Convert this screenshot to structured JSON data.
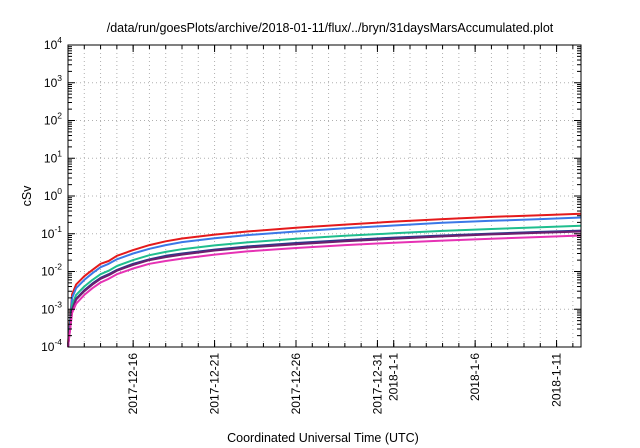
{
  "chart_data": {
    "type": "line",
    "title": "/data/run/goesPlots/archive/2018-01-11/flux/../bryn/31daysMarsAccumulated.plot",
    "xlabel": "Coordinated Universal Time (UTC)",
    "ylabel": "cSv",
    "yscale": "log",
    "ylim": [
      0.0001,
      10000
    ],
    "y_ticks": [
      {
        "base": "10",
        "exp": "-4",
        "value": 0.0001
      },
      {
        "base": "10",
        "exp": "-3",
        "value": 0.001
      },
      {
        "base": "10",
        "exp": "-2",
        "value": 0.01
      },
      {
        "base": "10",
        "exp": "-1",
        "value": 0.1
      },
      {
        "base": "10",
        "exp": "0",
        "value": 1
      },
      {
        "base": "10",
        "exp": "1",
        "value": 10
      },
      {
        "base": "10",
        "exp": "2",
        "value": 100
      },
      {
        "base": "10",
        "exp": "3",
        "value": 1000
      },
      {
        "base": "10",
        "exp": "4",
        "value": 10000
      }
    ],
    "xlim": [
      "2017-12-12",
      "2018-01-12 12:00"
    ],
    "x_ticks": [
      {
        "label": "2017-12-16",
        "date": "2017-12-16"
      },
      {
        "label": "2017-12-21",
        "date": "2017-12-21"
      },
      {
        "label": "2017-12-26",
        "date": "2017-12-26"
      },
      {
        "label": "2017-12-31",
        "date": "2017-12-31"
      },
      {
        "label": "2018-1-1",
        "date": "2018-01-01"
      },
      {
        "label": "2018-1-6",
        "date": "2018-01-06"
      },
      {
        "label": "2018-1-11",
        "date": "2018-01-11"
      }
    ],
    "grid": true,
    "legend": "none",
    "x": [
      "2017-12-12 00:00",
      "2017-12-12 06:00",
      "2017-12-12 12:00",
      "2017-12-13 00:00",
      "2017-12-13 12:00",
      "2017-12-14 00:00",
      "2017-12-14 12:00",
      "2017-12-15 00:00",
      "2017-12-16 00:00",
      "2017-12-17 00:00",
      "2017-12-18 00:00",
      "2017-12-19 00:00",
      "2017-12-21 00:00",
      "2017-12-23 00:00",
      "2017-12-26 00:00",
      "2017-12-29 00:00",
      "2018-01-01 00:00",
      "2018-01-04 00:00",
      "2018-01-07 00:00",
      "2018-01-10 00:00",
      "2018-01-12 12:00"
    ],
    "series": [
      {
        "color": "#e41a1c",
        "values": [
          0.00012,
          0.0025,
          0.0045,
          0.0075,
          0.011,
          0.016,
          0.019,
          0.026,
          0.037,
          0.05,
          0.063,
          0.075,
          0.095,
          0.115,
          0.145,
          0.175,
          0.21,
          0.245,
          0.28,
          0.31,
          0.34
        ]
      },
      {
        "color": "#3b78e7",
        "values": [
          0.0001,
          0.002,
          0.0036,
          0.006,
          0.009,
          0.013,
          0.016,
          0.021,
          0.03,
          0.04,
          0.05,
          0.06,
          0.076,
          0.092,
          0.115,
          0.14,
          0.165,
          0.195,
          0.22,
          0.245,
          0.27
        ]
      },
      {
        "color": "#1fbe8e",
        "values": [
          0.0001,
          0.0013,
          0.0024,
          0.004,
          0.006,
          0.0085,
          0.0105,
          0.014,
          0.02,
          0.027,
          0.033,
          0.039,
          0.049,
          0.059,
          0.074,
          0.088,
          0.103,
          0.119,
          0.134,
          0.149,
          0.163
        ]
      },
      {
        "color": "#283c8c",
        "values": [
          0.0001,
          0.001,
          0.0019,
          0.0032,
          0.0048,
          0.0068,
          0.0085,
          0.011,
          0.016,
          0.021,
          0.026,
          0.03,
          0.038,
          0.046,
          0.057,
          0.068,
          0.079,
          0.09,
          0.101,
          0.112,
          0.121
        ]
      },
      {
        "color": "#6e1e6e",
        "values": [
          0.0001,
          0.00095,
          0.0018,
          0.003,
          0.0045,
          0.0064,
          0.008,
          0.0105,
          0.015,
          0.02,
          0.024,
          0.028,
          0.036,
          0.043,
          0.053,
          0.063,
          0.074,
          0.085,
          0.096,
          0.106,
          0.115
        ]
      },
      {
        "color": "#e632b4",
        "values": [
          0.0001,
          0.0008,
          0.0014,
          0.0024,
          0.0036,
          0.0051,
          0.0064,
          0.0085,
          0.012,
          0.016,
          0.019,
          0.022,
          0.028,
          0.034,
          0.042,
          0.05,
          0.058,
          0.066,
          0.074,
          0.082,
          0.09
        ]
      }
    ]
  }
}
